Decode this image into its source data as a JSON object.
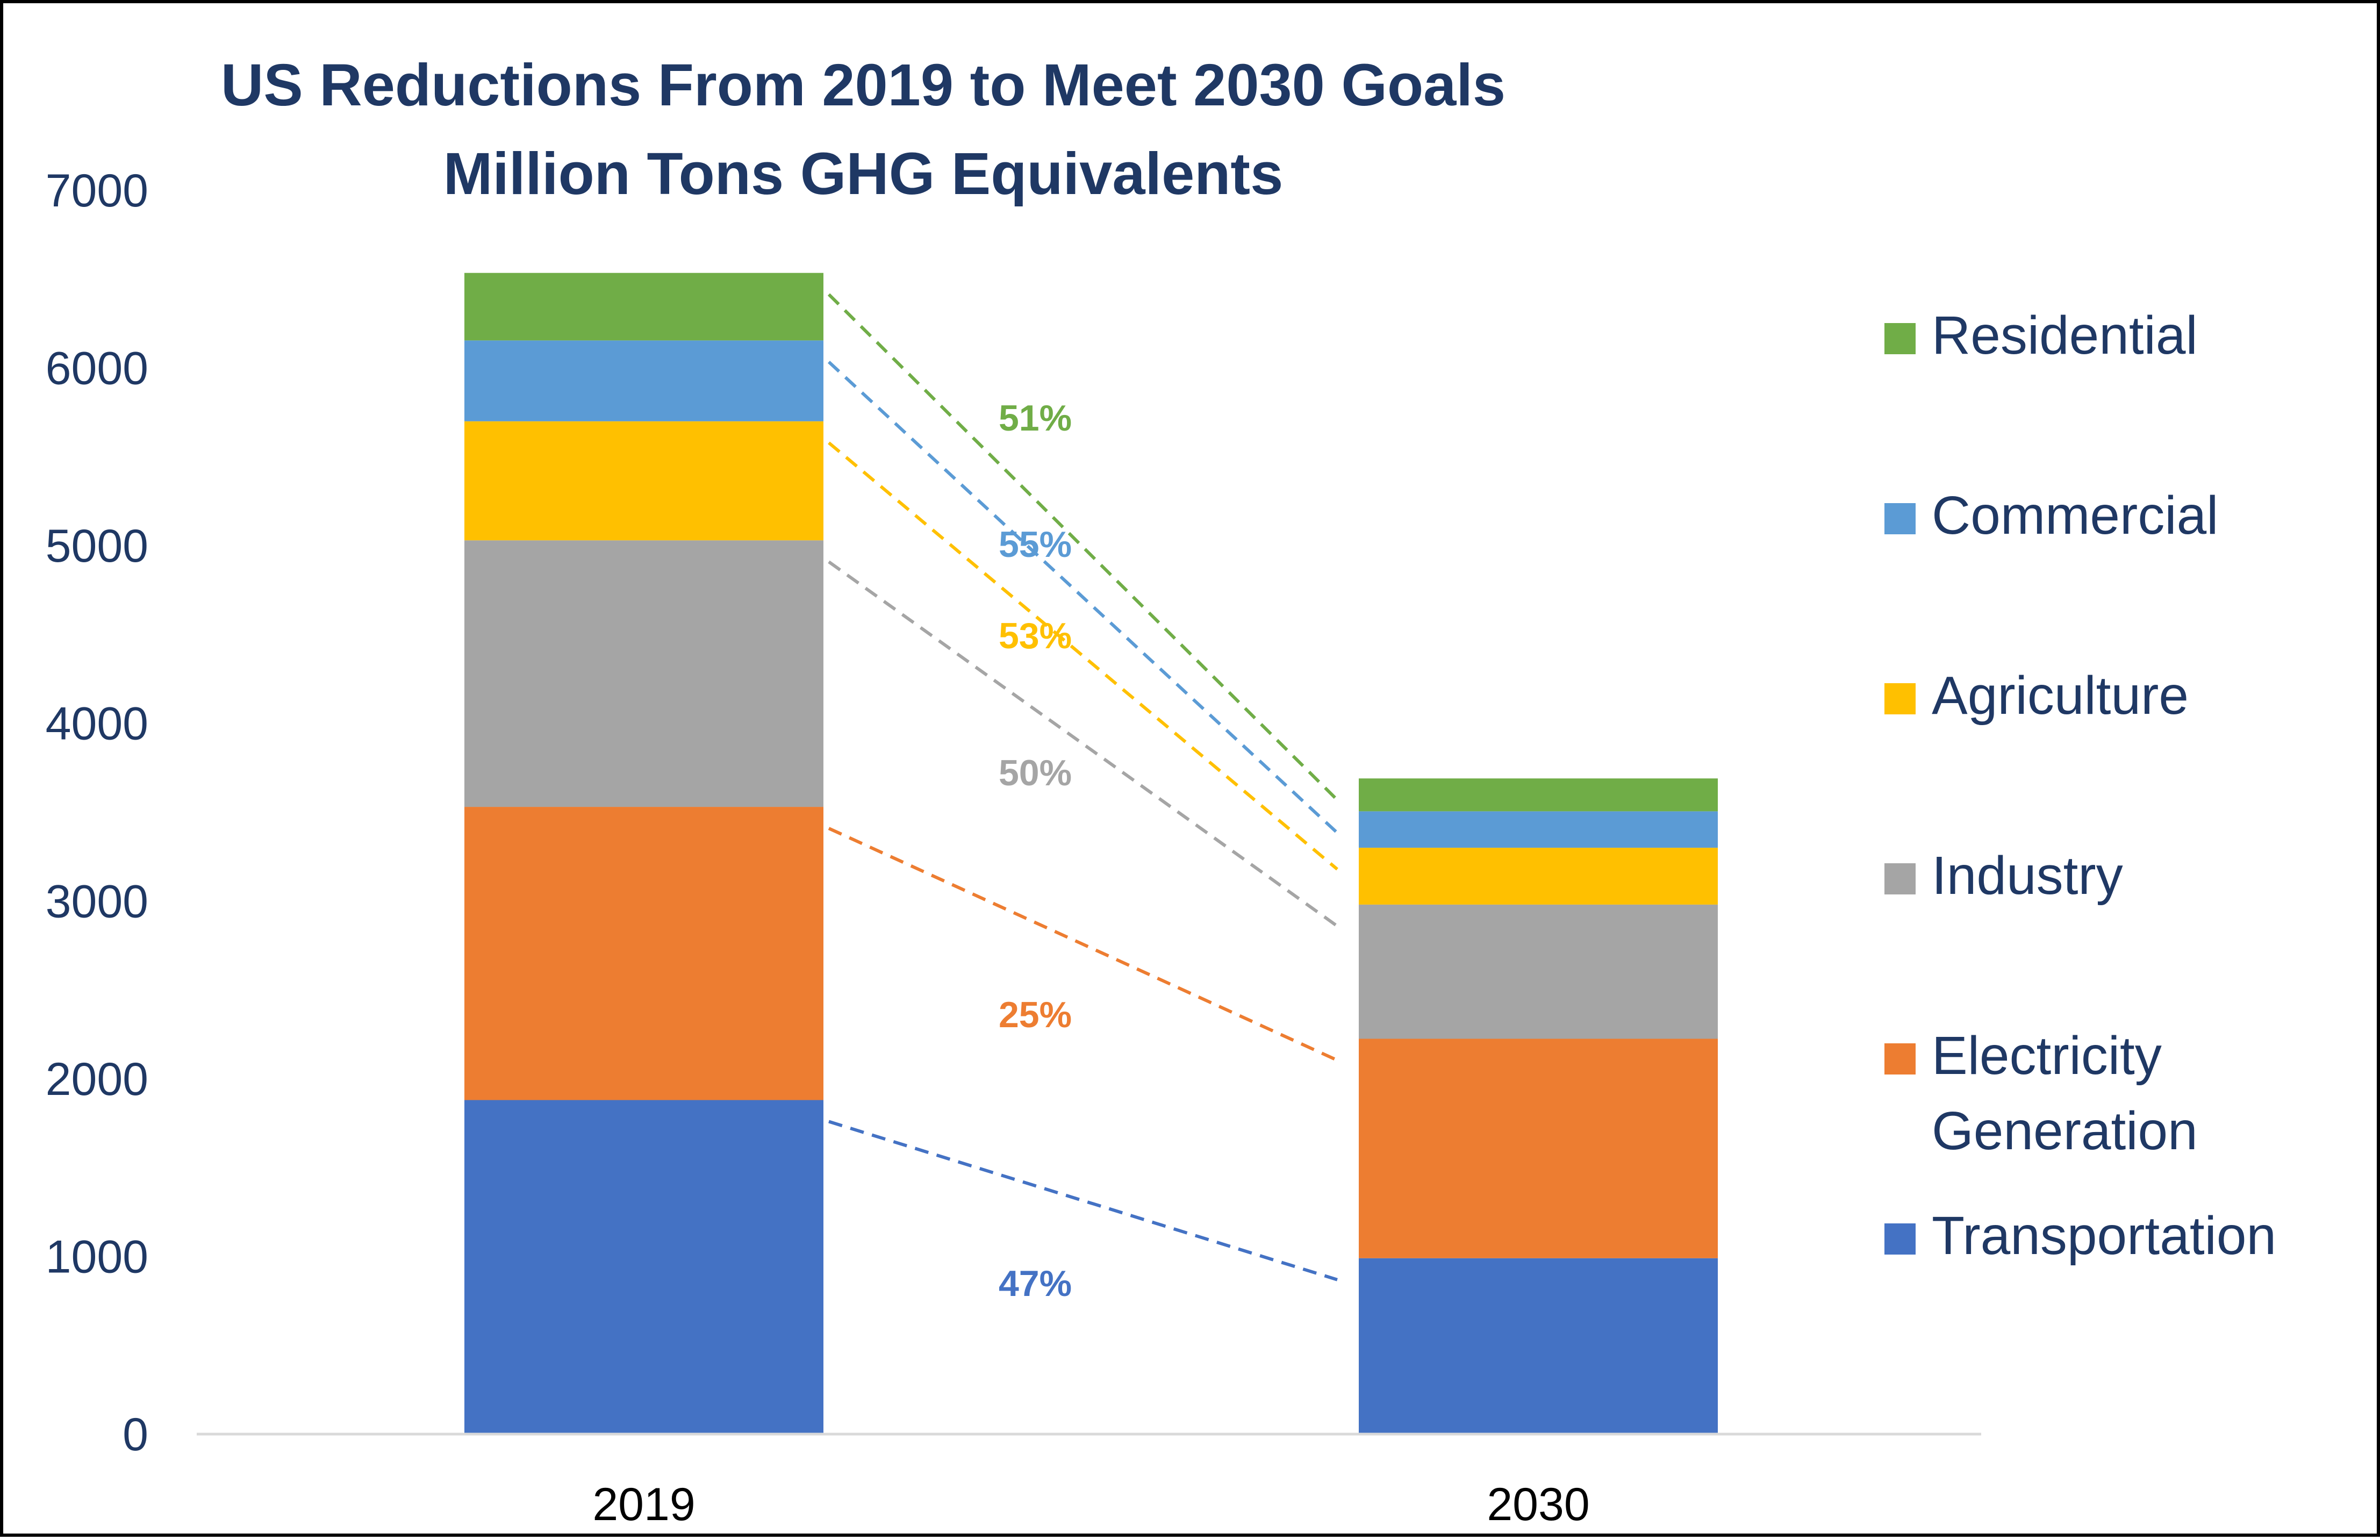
{
  "chart_data": {
    "type": "bar",
    "stacked": true,
    "title": "US Reductions From 2019 to Meet 2030 Goals",
    "subtitle": "Million Tons GHG Equivalents",
    "categories": [
      "2019",
      "2030"
    ],
    "ylim": [
      0,
      7000
    ],
    "yticks": [
      0,
      1000,
      2000,
      3000,
      4000,
      5000,
      6000,
      7000
    ],
    "grid": false,
    "legend_position": "right",
    "series": [
      {
        "name": "Transportation",
        "values": [
          1880,
          990
        ],
        "color": "#4472C4",
        "reduction": "47%"
      },
      {
        "name": "Electricity Generation",
        "values": [
          1650,
          1235
        ],
        "color": "#ED7D31",
        "reduction": "25%"
      },
      {
        "name": "Industry",
        "values": [
          1500,
          755
        ],
        "color": "#A5A5A5",
        "reduction": "50%"
      },
      {
        "name": "Agriculture",
        "values": [
          670,
          320
        ],
        "color": "#FFC000",
        "reduction": "53%"
      },
      {
        "name": "Commercial",
        "values": [
          455,
          205
        ],
        "color": "#5B9BD5",
        "reduction": "55%"
      },
      {
        "name": "Residential",
        "values": [
          380,
          185
        ],
        "color": "#70AD47",
        "reduction": "51%"
      }
    ],
    "text_color": "#1F3864",
    "axis_line_color": "#D9D9D9"
  }
}
